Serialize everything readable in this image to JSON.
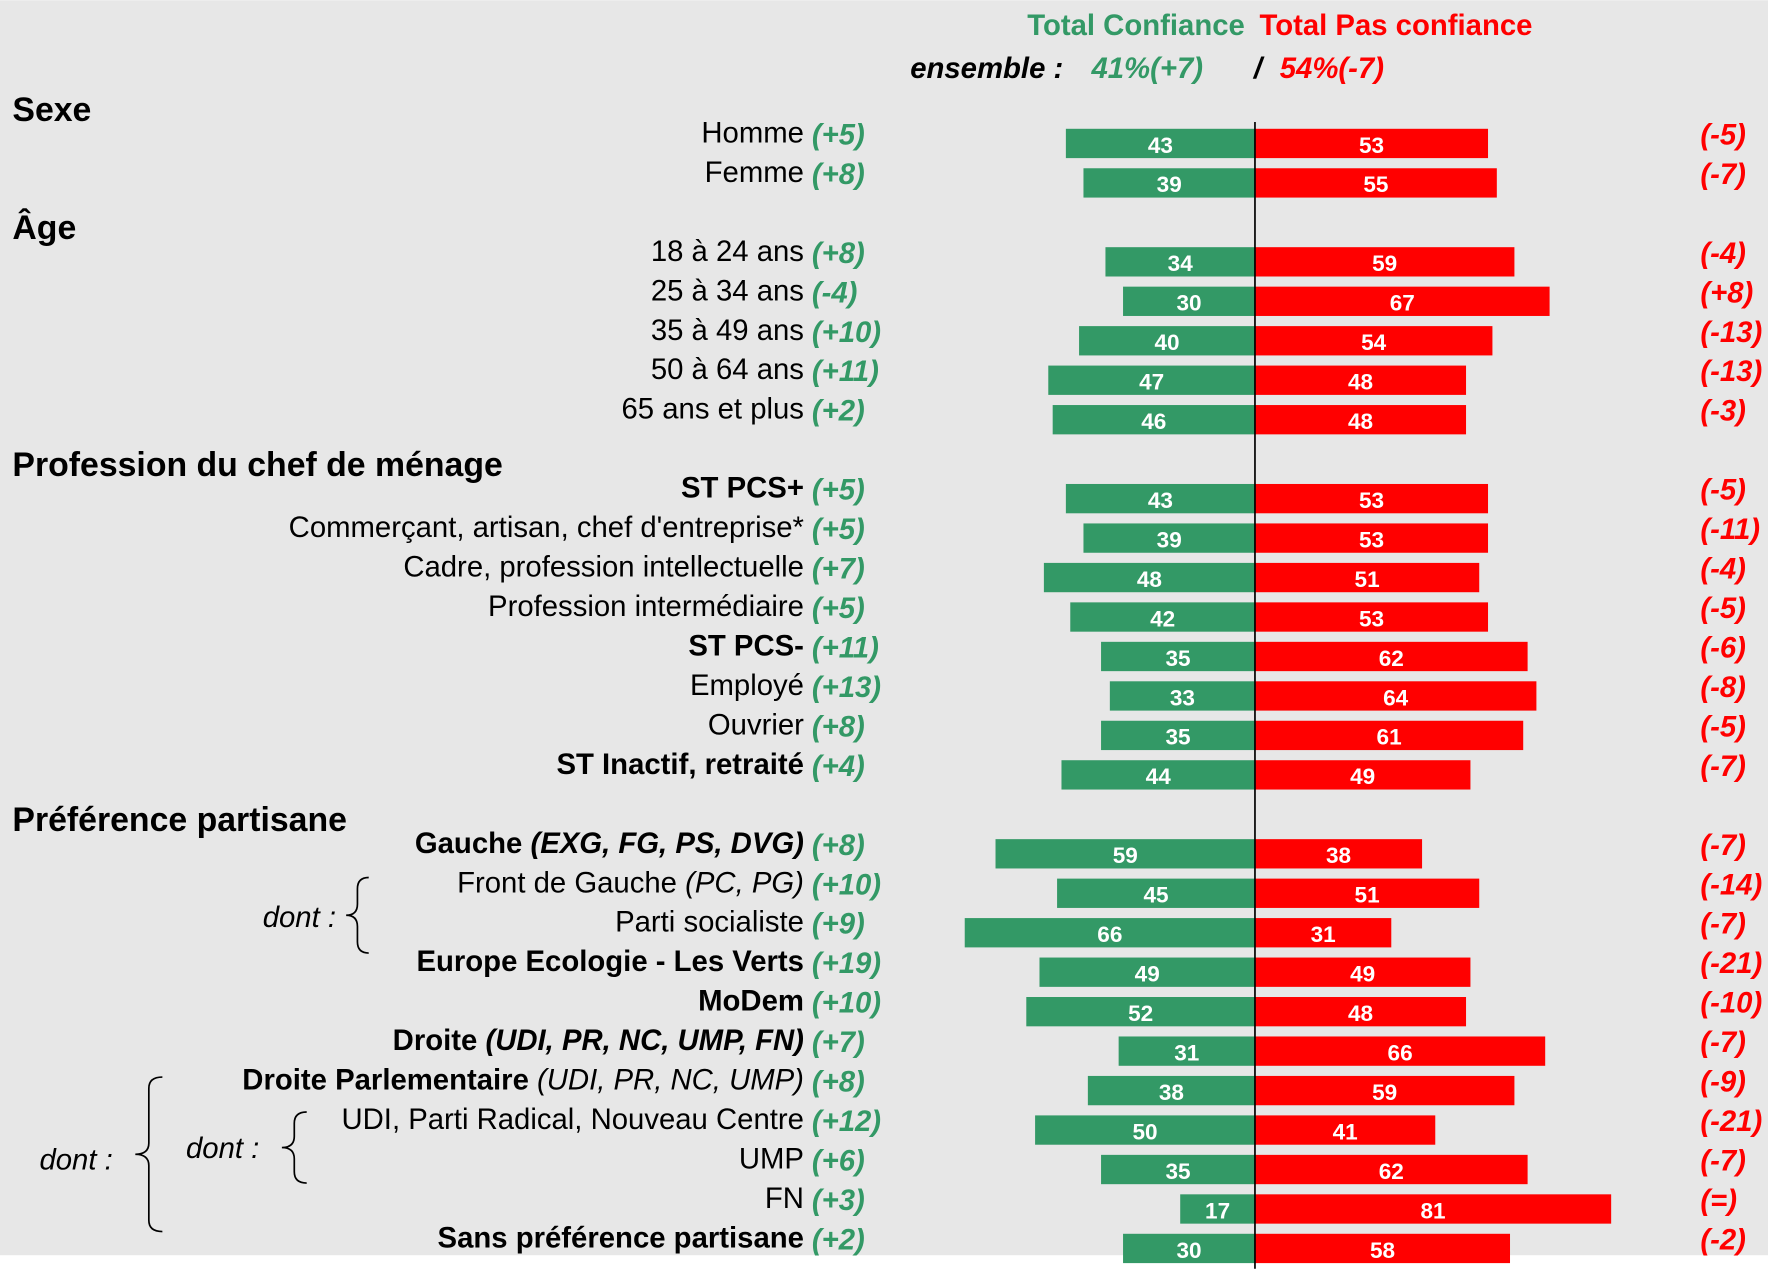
{
  "chart_data": {
    "type": "diverging_bar",
    "series": [
      {
        "name": "Total Confiance",
        "color": "#339966",
        "values": [
          43,
          39,
          34,
          30,
          40,
          47,
          46,
          43,
          39,
          48,
          42,
          35,
          33,
          35,
          44,
          59,
          45,
          66,
          49,
          52,
          31,
          38,
          50,
          35,
          17,
          30
        ],
        "changes": [
          "(+5)",
          "(+8)",
          "(+8)",
          "(-4)",
          "(+10)",
          "(+11)",
          "(+2)",
          "(+5)",
          "(+5)",
          "(+7)",
          "(+5)",
          "(+11)",
          "(+13)",
          "(+8)",
          "(+4)",
          "(+8)",
          "(+10)",
          "(+9)",
          "(+19)",
          "(+10)",
          "(+7)",
          "(+8)",
          "(+12)",
          "(+6)",
          "(+3)",
          "(+2)"
        ]
      },
      {
        "name": "Total Pas confiance",
        "color": "#ff0000",
        "values": [
          53,
          55,
          59,
          67,
          54,
          48,
          48,
          53,
          53,
          51,
          53,
          62,
          64,
          61,
          49,
          38,
          51,
          31,
          49,
          48,
          66,
          59,
          41,
          62,
          81,
          58
        ],
        "changes": [
          "(-5)",
          "(-7)",
          "(-4)",
          "(+8)",
          "(-13)",
          "(-13)",
          "(-3)",
          "(-5)",
          "(-11)",
          "(-4)",
          "(-5)",
          "(-6)",
          "(-8)",
          "(-5)",
          "(-7)",
          "(-7)",
          "(-14)",
          "(-7)",
          "(-21)",
          "(-10)",
          "(-7)",
          "(-9)",
          "(-21)",
          "(-7)",
          "(=)",
          "(-2)"
        ]
      }
    ],
    "overall": {
      "label": "ensemble :",
      "separator": "/",
      "values": [
        "41%(+7)",
        "54%(-7)"
      ]
    },
    "groups": [
      {
        "title": "Sexe",
        "categories": [
          [
            {
              "text": "Homme",
              "style": "normal"
            }
          ],
          [
            {
              "text": "Femme",
              "style": "normal"
            }
          ]
        ]
      },
      {
        "title": "Âge",
        "categories": [
          [
            {
              "text": "18 à 24 ans",
              "style": "normal"
            }
          ],
          [
            {
              "text": "25 à 34 ans",
              "style": "normal"
            }
          ],
          [
            {
              "text": "35 à 49 ans",
              "style": "normal"
            }
          ],
          [
            {
              "text": "50 à 64 ans",
              "style": "normal"
            }
          ],
          [
            {
              "text": "65 ans et plus",
              "style": "normal"
            }
          ]
        ]
      },
      {
        "title": "Profession du chef de ménage",
        "categories": [
          [
            {
              "text": "ST PCS+",
              "style": "bold"
            }
          ],
          [
            {
              "text": "Commerçant, artisan, chef d'entreprise*",
              "style": "normal"
            }
          ],
          [
            {
              "text": "Cadre, profession intellectuelle",
              "style": "normal"
            }
          ],
          [
            {
              "text": "Profession intermédiaire",
              "style": "normal"
            }
          ],
          [
            {
              "text": "ST PCS-",
              "style": "bold"
            }
          ],
          [
            {
              "text": "Employé",
              "style": "normal"
            }
          ],
          [
            {
              "text": "Ouvrier",
              "style": "normal"
            }
          ],
          [
            {
              "text": "ST Inactif, retraité",
              "style": "bold"
            }
          ]
        ]
      },
      {
        "title": "Préférence partisane",
        "categories": [
          [
            {
              "text": "Gauche ",
              "style": "bold"
            },
            {
              "text": "(EXG, FG, PS, DVG)",
              "style": "bold-italic"
            }
          ],
          [
            {
              "text": "Front de Gauche ",
              "style": "normal"
            },
            {
              "text": "(PC, PG)",
              "style": "italic"
            }
          ],
          [
            {
              "text": "Parti socialiste",
              "style": "normal"
            }
          ],
          [
            {
              "text": "Europe Ecologie - Les Verts",
              "style": "bold"
            }
          ],
          [
            {
              "text": "MoDem",
              "style": "bold"
            }
          ],
          [
            {
              "text": "Droite ",
              "style": "bold"
            },
            {
              "text": "(UDI, PR, NC, UMP, FN)",
              "style": "bold-italic"
            }
          ],
          [
            {
              "text": "Droite Parlementaire ",
              "style": "bold"
            },
            {
              "text": "(UDI, PR, NC, UMP)",
              "style": "italic"
            }
          ],
          [
            {
              "text": "UDI, Parti Radical, Nouveau Centre",
              "style": "normal"
            }
          ],
          [
            {
              "text": "UMP",
              "style": "normal"
            }
          ],
          [
            {
              "text": "FN",
              "style": "normal"
            }
          ],
          [
            {
              "text": "Sans préférence partisane",
              "style": "bold"
            }
          ]
        ]
      }
    ],
    "annotations": [
      "dont :",
      "dont :",
      "dont :"
    ]
  }
}
